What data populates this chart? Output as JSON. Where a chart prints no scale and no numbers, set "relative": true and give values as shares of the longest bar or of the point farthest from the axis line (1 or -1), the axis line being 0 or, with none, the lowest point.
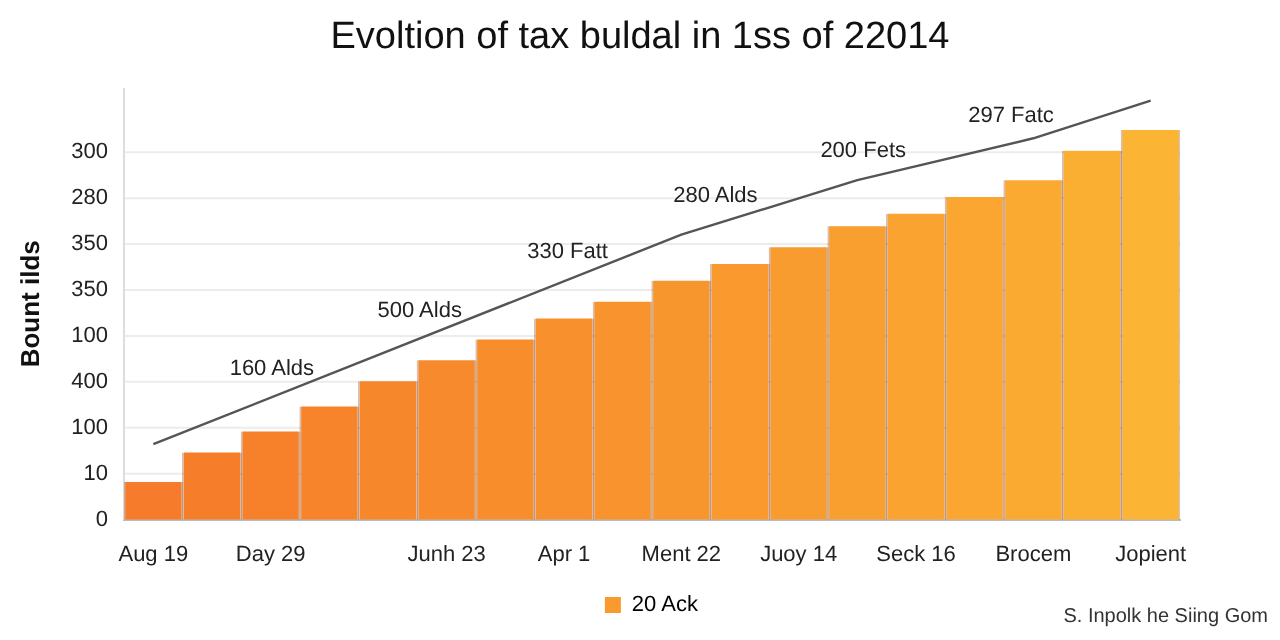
{
  "chart_data": {
    "type": "bar",
    "title": "Evoltion of tax buldal in 1ss of 22014",
    "ylabel": "Bount ilds",
    "relative": true,
    "categories": [
      "Aug 19",
      null,
      "Day 29",
      null,
      null,
      "Junh 23",
      null,
      "Apr 1",
      null,
      "Ment 22",
      null,
      "Juoy 14",
      null,
      "Seck 16",
      null,
      "Brocem",
      null,
      "Jopient"
    ],
    "series": [
      {
        "name": "20 Ack",
        "color": "#f89a2e",
        "colors": [
          "#f67b2a",
          "#f67e2a",
          "#f7812a",
          "#f7842b",
          "#f7872b",
          "#f78a2c",
          "#f88d2c",
          "#f8902d",
          "#f8932d",
          "#f8962e",
          "#f9992e",
          "#f99c2f",
          "#f99f2f",
          "#faa330",
          "#faa631",
          "#faaa31",
          "#fbaf32",
          "#fbb433"
        ],
        "values": [
          0.09,
          0.16,
          0.21,
          0.27,
          0.33,
          0.38,
          0.43,
          0.48,
          0.52,
          0.57,
          0.61,
          0.65,
          0.7,
          0.73,
          0.77,
          0.81,
          0.88,
          0.93
        ]
      },
      {
        "type": "line",
        "color": "#555555",
        "values": [
          0.18,
          null,
          null,
          null,
          null,
          null,
          null,
          null,
          null,
          0.68,
          null,
          null,
          0.81,
          null,
          null,
          0.91,
          null,
          1
        ]
      }
    ],
    "grid": "y",
    "legend": "bottom",
    "marker": "none",
    "annotations": [
      "160 Alds",
      "500 Alds",
      "330 Fatt",
      "280 Alds",
      "200 Fets",
      "297 Fatc",
      "0",
      "10",
      "100",
      "400",
      "100",
      "350",
      "350",
      "280",
      "300",
      "S. Inpolk he Siing Gom"
    ]
  }
}
